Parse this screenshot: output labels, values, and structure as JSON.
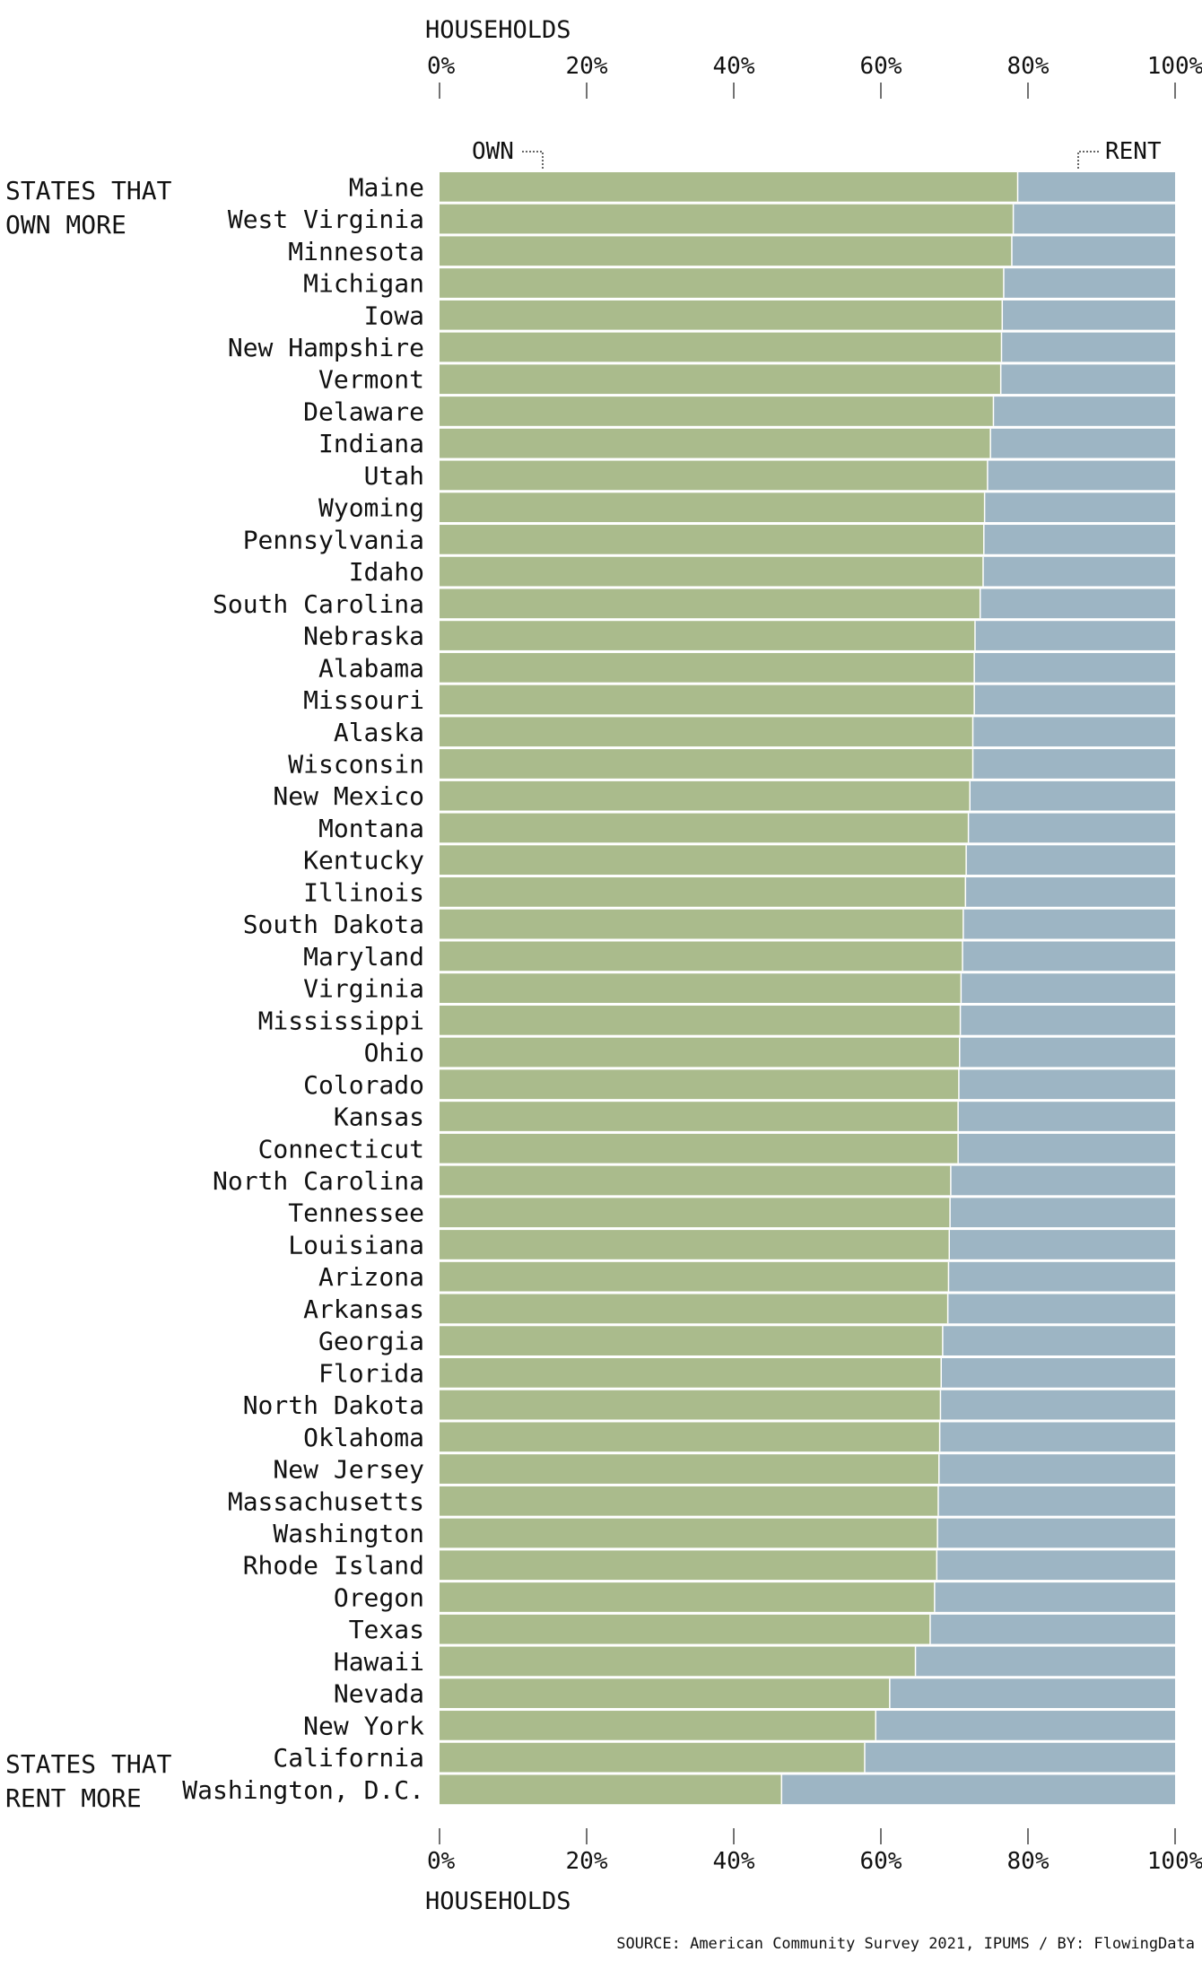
{
  "chart_data": {
    "type": "bar",
    "stacked": true,
    "orientation": "horizontal",
    "axis_title": "HOUSEHOLDS",
    "tick_labels": [
      "0%",
      "20%",
      "40%",
      "60%",
      "80%",
      "100%"
    ],
    "xlim": [
      0,
      100
    ],
    "series_labels": {
      "own": "OWN",
      "rent": "RENT"
    },
    "colors": {
      "own": "#aabb8c",
      "rent": "#9db5c4"
    },
    "group_labels": {
      "top_line1": "STATES THAT",
      "top_line2": "OWN MORE",
      "bottom_line1": "STATES THAT",
      "bottom_line2": "RENT MORE"
    },
    "categories": [
      "Maine",
      "West Virginia",
      "Minnesota",
      "Michigan",
      "Iowa",
      "New Hampshire",
      "Vermont",
      "Delaware",
      "Indiana",
      "Utah",
      "Wyoming",
      "Pennsylvania",
      "Idaho",
      "South Carolina",
      "Nebraska",
      "Alabama",
      "Missouri",
      "Alaska",
      "Wisconsin",
      "New Mexico",
      "Montana",
      "Kentucky",
      "Illinois",
      "South Dakota",
      "Maryland",
      "Virginia",
      "Mississippi",
      "Ohio",
      "Colorado",
      "Kansas",
      "Connecticut",
      "North Carolina",
      "Tennessee",
      "Louisiana",
      "Arizona",
      "Arkansas",
      "Georgia",
      "Florida",
      "North Dakota",
      "Oklahoma",
      "New Jersey",
      "Massachusetts",
      "Washington",
      "Rhode Island",
      "Oregon",
      "Texas",
      "Hawaii",
      "Nevada",
      "New York",
      "California",
      "Washington, D.C."
    ],
    "own_pct": [
      78.6,
      78.0,
      77.8,
      76.7,
      76.5,
      76.4,
      76.3,
      75.3,
      74.9,
      74.5,
      74.1,
      74.0,
      73.9,
      73.5,
      72.8,
      72.7,
      72.7,
      72.5,
      72.5,
      72.1,
      71.9,
      71.6,
      71.5,
      71.2,
      71.1,
      70.9,
      70.8,
      70.7,
      70.6,
      70.5,
      70.5,
      69.5,
      69.4,
      69.3,
      69.2,
      69.1,
      68.4,
      68.2,
      68.1,
      68.0,
      67.9,
      67.8,
      67.7,
      67.6,
      67.3,
      66.7,
      64.7,
      61.2,
      59.3,
      57.8,
      46.5
    ]
  },
  "source": "SOURCE: American Community Survey 2021, IPUMS / BY: FlowingData"
}
